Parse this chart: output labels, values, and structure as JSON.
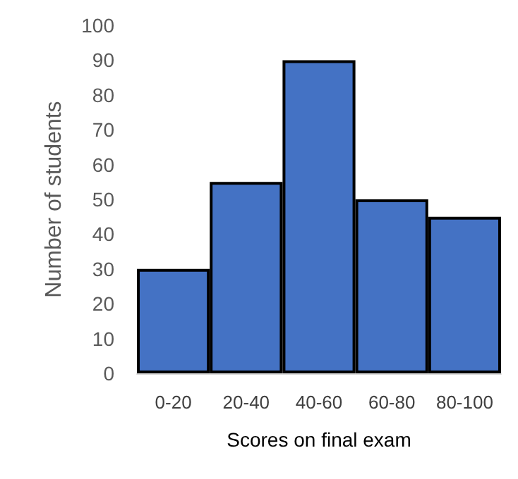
{
  "chart_data": {
    "type": "bar",
    "xlabel": "Scores on final exam",
    "ylabel": "Number of students",
    "categories": [
      "0-20",
      "20-40",
      "40-60",
      "60-80",
      "80-100"
    ],
    "values": [
      30,
      55,
      90,
      50,
      45
    ],
    "color": "#4472c4",
    "ylim": [
      0,
      100
    ],
    "yticks": [
      0,
      10,
      20,
      30,
      40,
      50,
      60,
      70,
      80,
      90,
      100
    ]
  }
}
